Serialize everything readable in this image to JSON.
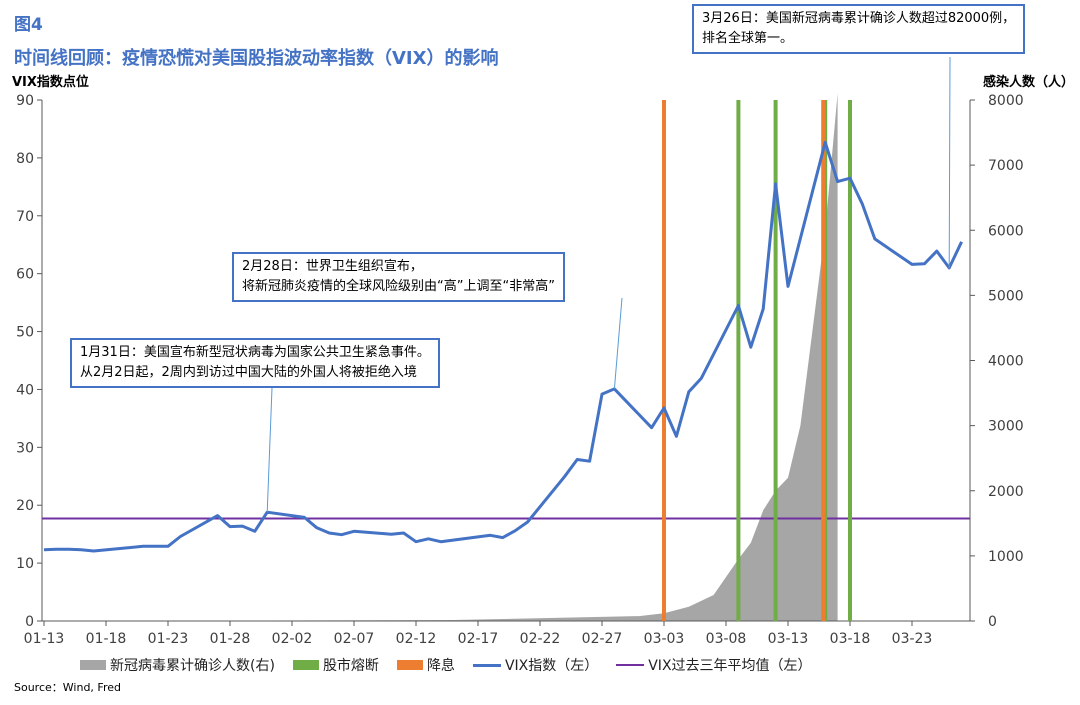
{
  "figure_label": "图4",
  "title": "时间线回顾：疫情恐慌对美国股指波动率指数（VIX）的影响",
  "source": "Source：Wind, Fred",
  "chart_data": {
    "type": "line",
    "left_axis_label": "VIX指数点位",
    "right_axis_label": "感染人数（人）",
    "left_ylim": [
      0,
      90
    ],
    "left_ticks": [
      0,
      10,
      20,
      30,
      40,
      50,
      60,
      70,
      80,
      90
    ],
    "right_ylim": [
      0,
      8000
    ],
    "right_ticks": [
      0,
      1000,
      2000,
      3000,
      4000,
      5000,
      6000,
      7000,
      8000
    ],
    "x_tick_labels": [
      "01-13",
      "01-18",
      "01-23",
      "01-28",
      "02-02",
      "02-07",
      "02-12",
      "02-17",
      "02-22",
      "02-27",
      "03-03",
      "03-08",
      "03-13",
      "03-18",
      "03-23"
    ],
    "series": [
      {
        "name": "VIX指数（左）",
        "color": "#4472C4",
        "axis": "left",
        "points": [
          [
            "01-13",
            12.3
          ],
          [
            "01-14",
            12.4
          ],
          [
            "01-15",
            12.4
          ],
          [
            "01-16",
            12.3
          ],
          [
            "01-17",
            12.1
          ],
          [
            "01-21",
            12.9
          ],
          [
            "01-22",
            12.9
          ],
          [
            "01-23",
            12.9
          ],
          [
            "01-24",
            14.6
          ],
          [
            "01-27",
            18.2
          ],
          [
            "01-28",
            16.3
          ],
          [
            "01-29",
            16.4
          ],
          [
            "01-30",
            15.5
          ],
          [
            "01-31",
            18.8
          ],
          [
            "02-03",
            17.9
          ],
          [
            "02-04",
            16.1
          ],
          [
            "02-05",
            15.2
          ],
          [
            "02-06",
            14.9
          ],
          [
            "02-07",
            15.5
          ],
          [
            "02-10",
            15.0
          ],
          [
            "02-11",
            15.2
          ],
          [
            "02-12",
            13.7
          ],
          [
            "02-13",
            14.2
          ],
          [
            "02-14",
            13.7
          ],
          [
            "02-18",
            14.8
          ],
          [
            "02-19",
            14.4
          ],
          [
            "02-20",
            15.6
          ],
          [
            "02-21",
            17.1
          ],
          [
            "02-24",
            25.0
          ],
          [
            "02-25",
            27.9
          ],
          [
            "02-26",
            27.6
          ],
          [
            "02-27",
            39.2
          ],
          [
            "02-28",
            40.1
          ],
          [
            "03-02",
            33.4
          ],
          [
            "03-03",
            36.8
          ],
          [
            "03-04",
            31.9
          ],
          [
            "03-05",
            39.6
          ],
          [
            "03-06",
            41.9
          ],
          [
            "03-09",
            54.5
          ],
          [
            "03-10",
            47.3
          ],
          [
            "03-11",
            53.9
          ],
          [
            "03-12",
            75.5
          ],
          [
            "03-13",
            57.8
          ],
          [
            "03-16",
            82.7
          ],
          [
            "03-17",
            75.9
          ],
          [
            "03-18",
            76.5
          ],
          [
            "03-19",
            72.0
          ],
          [
            "03-20",
            66.0
          ],
          [
            "03-23",
            61.6
          ],
          [
            "03-24",
            61.7
          ],
          [
            "03-25",
            63.9
          ],
          [
            "03-26",
            61.0
          ],
          [
            "03-27",
            65.5
          ]
        ]
      },
      {
        "name": "新冠病毒累计确诊人数(右)",
        "color": "#A6A6A6",
        "axis": "right",
        "type": "area",
        "points": [
          [
            "01-13",
            0
          ],
          [
            "01-20",
            1
          ],
          [
            "01-31",
            7
          ],
          [
            "02-15",
            15
          ],
          [
            "02-26",
            60
          ],
          [
            "03-01",
            75
          ],
          [
            "03-03",
            120
          ],
          [
            "03-05",
            220
          ],
          [
            "03-07",
            400
          ],
          [
            "03-09",
            950
          ],
          [
            "03-10",
            1200
          ],
          [
            "03-11",
            1700
          ],
          [
            "03-12",
            2000
          ],
          [
            "03-13",
            2200
          ],
          [
            "03-14",
            3000
          ],
          [
            "03-15",
            4500
          ],
          [
            "03-16",
            6000
          ],
          [
            "03-17",
            8100
          ]
        ]
      },
      {
        "name": "VIX过去三年平均值（左）",
        "color": "#7030A0",
        "axis": "left",
        "type": "hline",
        "value": 17.7
      }
    ],
    "vlines": [
      {
        "name": "股市熔断",
        "color": "#70AD47",
        "dates": [
          "03-09",
          "03-12",
          "03-16",
          "03-18"
        ]
      },
      {
        "name": "降息",
        "color": "#ED7D31",
        "dates": [
          "03-03",
          "03-16"
        ]
      }
    ],
    "annotations": [
      {
        "id": "ann1",
        "lines": [
          "1月31日：美国宣布新型冠状病毒为国家公共卫生紧急事件。",
          "从2月2日起，2周内到访过中国大陆的外国人将被拒绝入境"
        ],
        "target": [
          "01-31",
          18.8
        ]
      },
      {
        "id": "ann2",
        "lines": [
          "2月28日：世界卫生组织宣布，",
          "将新冠肺炎疫情的全球风险级别由“高”上调至“非常高”"
        ],
        "target": [
          "02-28",
          40.1
        ]
      },
      {
        "id": "ann3",
        "lines": [
          "3月26日：美国新冠病毒累计确诊人数超过82000例，",
          "排名全球第一。"
        ],
        "target": [
          "03-26",
          61.0
        ]
      }
    ],
    "legend": [
      "新冠病毒累计确诊人数(右)",
      "股市熔断",
      "降息",
      "VIX指数（左）",
      "VIX过去三年平均值（左）"
    ]
  }
}
